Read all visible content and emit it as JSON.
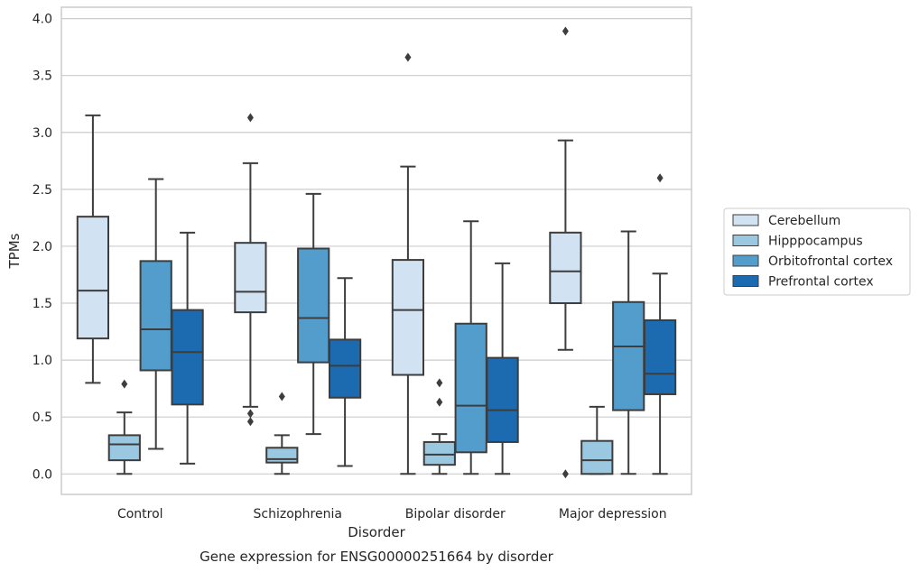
{
  "chart_data": {
    "type": "box",
    "xlabel": "Disorder",
    "ylabel": "TPMs",
    "caption": "Gene expression for ENSG00000251664 by disorder",
    "ylim": [
      -0.18,
      4.1
    ],
    "yticks": [
      "0.0",
      "0.5",
      "1.0",
      "1.5",
      "2.0",
      "2.5",
      "3.0",
      "3.5",
      "4.0"
    ],
    "grid": true,
    "legend_position": "right",
    "categories": [
      "Control",
      "Schizophrenia",
      "Bipolar disorder",
      "Major depression"
    ],
    "series": [
      {
        "name": "Cerebellum",
        "color": "#d1e2f2",
        "boxes": [
          {
            "whislo": 0.8,
            "q1": 1.19,
            "med": 1.61,
            "q3": 2.26,
            "whishi": 3.15,
            "fliers": []
          },
          {
            "whislo": 0.59,
            "q1": 1.42,
            "med": 1.6,
            "q3": 2.03,
            "whishi": 2.73,
            "fliers": [
              3.13,
              0.53,
              0.46
            ]
          },
          {
            "whislo": 0.0,
            "q1": 0.87,
            "med": 1.44,
            "q3": 1.88,
            "whishi": 2.7,
            "fliers": [
              3.66
            ]
          },
          {
            "whislo": 1.09,
            "q1": 1.5,
            "med": 1.78,
            "q3": 2.12,
            "whishi": 2.93,
            "fliers": [
              3.89,
              0.0
            ]
          }
        ]
      },
      {
        "name": "Hipppocampus",
        "color": "#9ac8e0",
        "boxes": [
          {
            "whislo": 0.0,
            "q1": 0.12,
            "med": 0.26,
            "q3": 0.34,
            "whishi": 0.54,
            "fliers": [
              0.79
            ]
          },
          {
            "whislo": 0.0,
            "q1": 0.1,
            "med": 0.13,
            "q3": 0.23,
            "whishi": 0.34,
            "fliers": [
              0.68
            ]
          },
          {
            "whislo": 0.0,
            "q1": 0.08,
            "med": 0.17,
            "q3": 0.28,
            "whishi": 0.35,
            "fliers": [
              0.8,
              0.63
            ]
          },
          {
            "whislo": 0.0,
            "q1": 0.0,
            "med": 0.12,
            "q3": 0.29,
            "whishi": 0.59,
            "fliers": []
          }
        ]
      },
      {
        "name": "Orbitofrontal cortex",
        "color": "#529dcc",
        "boxes": [
          {
            "whislo": 0.22,
            "q1": 0.91,
            "med": 1.27,
            "q3": 1.87,
            "whishi": 2.59,
            "fliers": []
          },
          {
            "whislo": 0.35,
            "q1": 0.98,
            "med": 1.37,
            "q3": 1.98,
            "whishi": 2.46,
            "fliers": []
          },
          {
            "whislo": 0.0,
            "q1": 0.19,
            "med": 0.6,
            "q3": 1.32,
            "whishi": 2.22,
            "fliers": []
          },
          {
            "whislo": 0.0,
            "q1": 0.56,
            "med": 1.12,
            "q3": 1.51,
            "whishi": 2.13,
            "fliers": []
          }
        ]
      },
      {
        "name": "Prefrontal cortex",
        "color": "#1c6aaf",
        "boxes": [
          {
            "whislo": 0.09,
            "q1": 0.61,
            "med": 1.07,
            "q3": 1.44,
            "whishi": 2.12,
            "fliers": []
          },
          {
            "whislo": 0.07,
            "q1": 0.67,
            "med": 0.95,
            "q3": 1.18,
            "whishi": 1.72,
            "fliers": []
          },
          {
            "whislo": 0.0,
            "q1": 0.28,
            "med": 0.56,
            "q3": 1.02,
            "whishi": 1.85,
            "fliers": []
          },
          {
            "whislo": 0.0,
            "q1": 0.7,
            "med": 0.88,
            "q3": 1.35,
            "whishi": 1.76,
            "fliers": [
              2.6
            ]
          }
        ]
      }
    ]
  }
}
